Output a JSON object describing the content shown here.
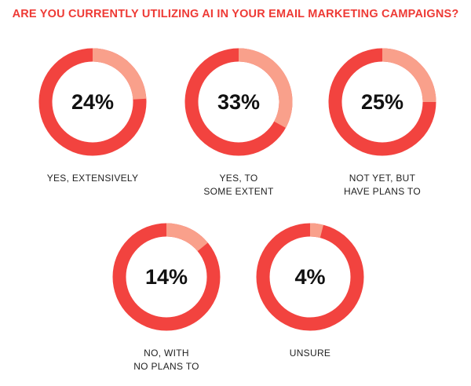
{
  "chart_data": {
    "type": "donut",
    "title": "ARE YOU CURRENTLY UTILIZING AI IN YOUR EMAIL MARKETING CAMPAIGNS?",
    "categories": [
      "YES, EXTENSIVELY",
      "YES, TO\nSOME EXTENT",
      "NOT YET, BUT\nHAVE PLANS TO",
      "NO, WITH\nNO PLANS TO",
      "UNSURE"
    ],
    "values": [
      24,
      33,
      25,
      14,
      4
    ],
    "value_labels": [
      "24%",
      "33%",
      "25%",
      "14%",
      "4%"
    ],
    "ylim": [
      0,
      100
    ],
    "color": "#f9a08b",
    "ring_color": "#f2433f"
  }
}
